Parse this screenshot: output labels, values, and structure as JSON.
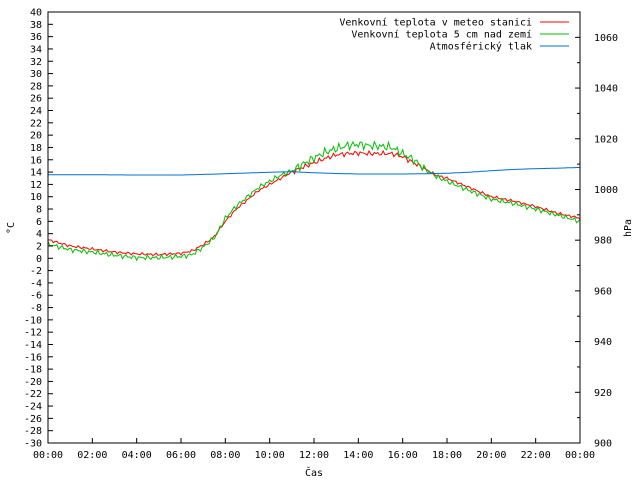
{
  "chart_data": {
    "type": "line",
    "xlabel": "Čas",
    "ylabel": "°C",
    "y2label": "hPa",
    "x_ticks": [
      "00:00",
      "02:00",
      "04:00",
      "06:00",
      "08:00",
      "10:00",
      "12:00",
      "14:00",
      "16:00",
      "18:00",
      "20:00",
      "22:00",
      "00:00"
    ],
    "xlim_hours": [
      0,
      24
    ],
    "ylim": [
      -30,
      40
    ],
    "y_ticks": [
      40,
      38,
      36,
      34,
      32,
      30,
      28,
      26,
      24,
      22,
      20,
      18,
      16,
      14,
      12,
      10,
      8,
      6,
      4,
      2,
      0,
      -2,
      -4,
      -6,
      -8,
      -10,
      -12,
      -14,
      -16,
      -18,
      -20,
      -22,
      -24,
      -26,
      -28,
      -30
    ],
    "y2lim": [
      900,
      1070
    ],
    "y2_ticks": [
      1060,
      1040,
      1020,
      1000,
      980,
      960,
      940,
      920,
      900
    ],
    "legend_position": "top-right",
    "series": [
      {
        "name": "Venkovní teplota v meteo stanici",
        "color": "#ff0000",
        "axis": "left",
        "x": [
          0,
          1,
          2,
          3,
          4,
          5,
          6,
          6.5,
          7,
          7.5,
          8,
          8.5,
          9,
          9.5,
          10,
          10.5,
          11,
          11.5,
          12,
          12.5,
          13,
          13.5,
          14,
          14.5,
          15,
          15.5,
          16,
          16.5,
          17,
          17.5,
          18,
          19,
          20,
          21,
          22,
          23,
          24
        ],
        "y": [
          3.0,
          2.0,
          1.5,
          1.0,
          0.7,
          0.6,
          0.8,
          1.2,
          2.2,
          3.5,
          6.0,
          8.0,
          9.5,
          11.0,
          12.0,
          13.0,
          14.0,
          14.8,
          15.5,
          16.2,
          16.8,
          17.0,
          17.1,
          17.0,
          17.0,
          17.0,
          16.5,
          15.5,
          14.5,
          13.5,
          13.0,
          11.5,
          10.0,
          9.3,
          8.4,
          7.3,
          6.5
        ]
      },
      {
        "name": "Venkovní teplota 5 cm nad zemí",
        "color": "#00c000",
        "axis": "left",
        "x": [
          0,
          1,
          2,
          3,
          4,
          5,
          6,
          6.5,
          7,
          7.5,
          8,
          8.5,
          9,
          9.5,
          10,
          10.5,
          11,
          11.5,
          12,
          12.5,
          13,
          13.5,
          14,
          14.5,
          15,
          15.5,
          16,
          16.5,
          17,
          17.5,
          18,
          19,
          20,
          21,
          22,
          23,
          24
        ],
        "y": [
          2.3,
          1.4,
          1.0,
          0.5,
          0.1,
          0.1,
          0.3,
          0.6,
          1.8,
          3.3,
          6.5,
          8.5,
          10.0,
          11.5,
          12.5,
          13.5,
          14.2,
          15.3,
          16.3,
          17.2,
          17.8,
          18.3,
          18.5,
          18.3,
          18.2,
          18.0,
          17.0,
          16.0,
          14.5,
          13.3,
          12.5,
          11.0,
          9.6,
          8.9,
          8.0,
          7.0,
          6.0
        ]
      },
      {
        "name": "Atmosférický tlak",
        "color": "#0070d0",
        "axis": "right",
        "x": [
          0,
          2,
          4,
          6,
          8,
          10,
          11,
          12,
          13,
          14,
          15,
          16,
          17,
          18,
          19,
          20,
          21,
          22,
          23,
          24
        ],
        "y": [
          1005.8,
          1005.8,
          1005.7,
          1005.7,
          1006.2,
          1006.8,
          1007.0,
          1006.6,
          1006.3,
          1006.1,
          1006.1,
          1006.1,
          1006.2,
          1006.4,
          1006.8,
          1007.4,
          1007.9,
          1008.2,
          1008.4,
          1008.7
        ]
      }
    ]
  }
}
